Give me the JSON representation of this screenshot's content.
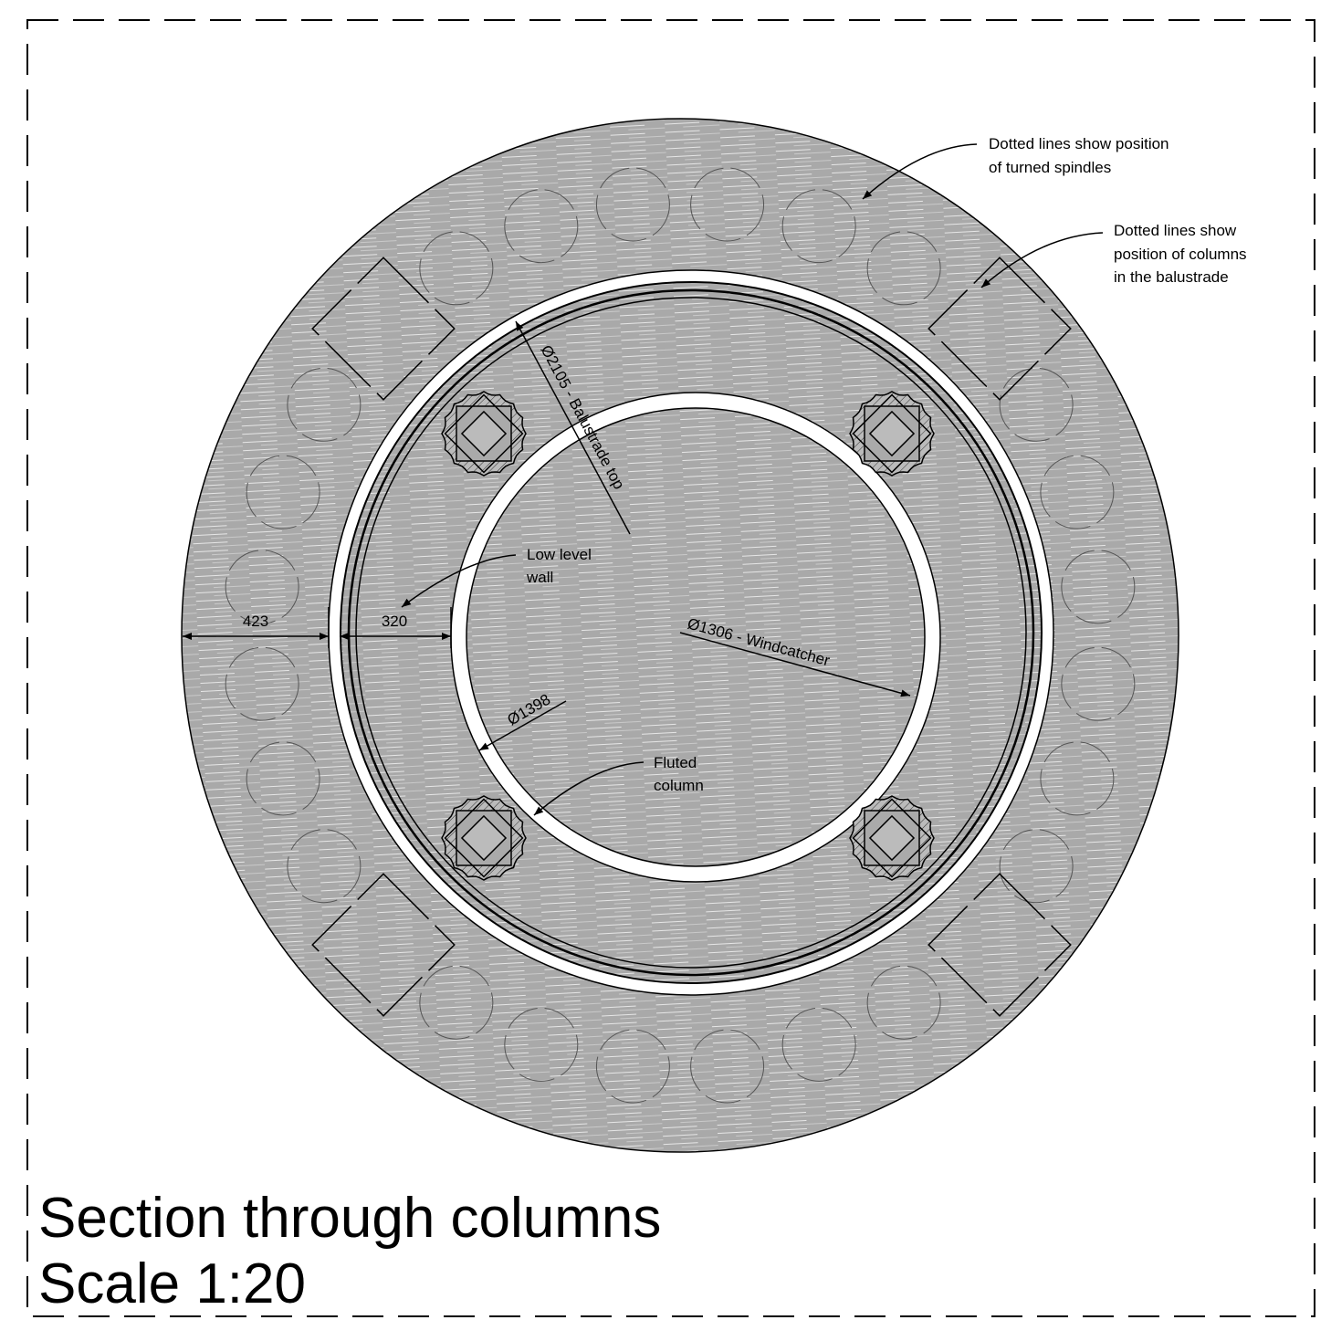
{
  "drawing": {
    "title": "Section through columns",
    "scale": "Scale 1:20",
    "notes": {
      "spindles": [
        "Dotted lines show position",
        "of turned spindles"
      ],
      "columns": [
        "Dotted lines show",
        "position of columns",
        "in the balustrade"
      ],
      "wall": [
        "Low level",
        "wall"
      ],
      "fluted": [
        "Fluted",
        "column"
      ]
    },
    "dimensions": {
      "outer_width": 423,
      "wall_width": 320,
      "balustrade": "Ø2105 - Balustrade top",
      "windcatcher": "Ø1306 - Windcatcher",
      "inner": "Ø1398"
    }
  }
}
